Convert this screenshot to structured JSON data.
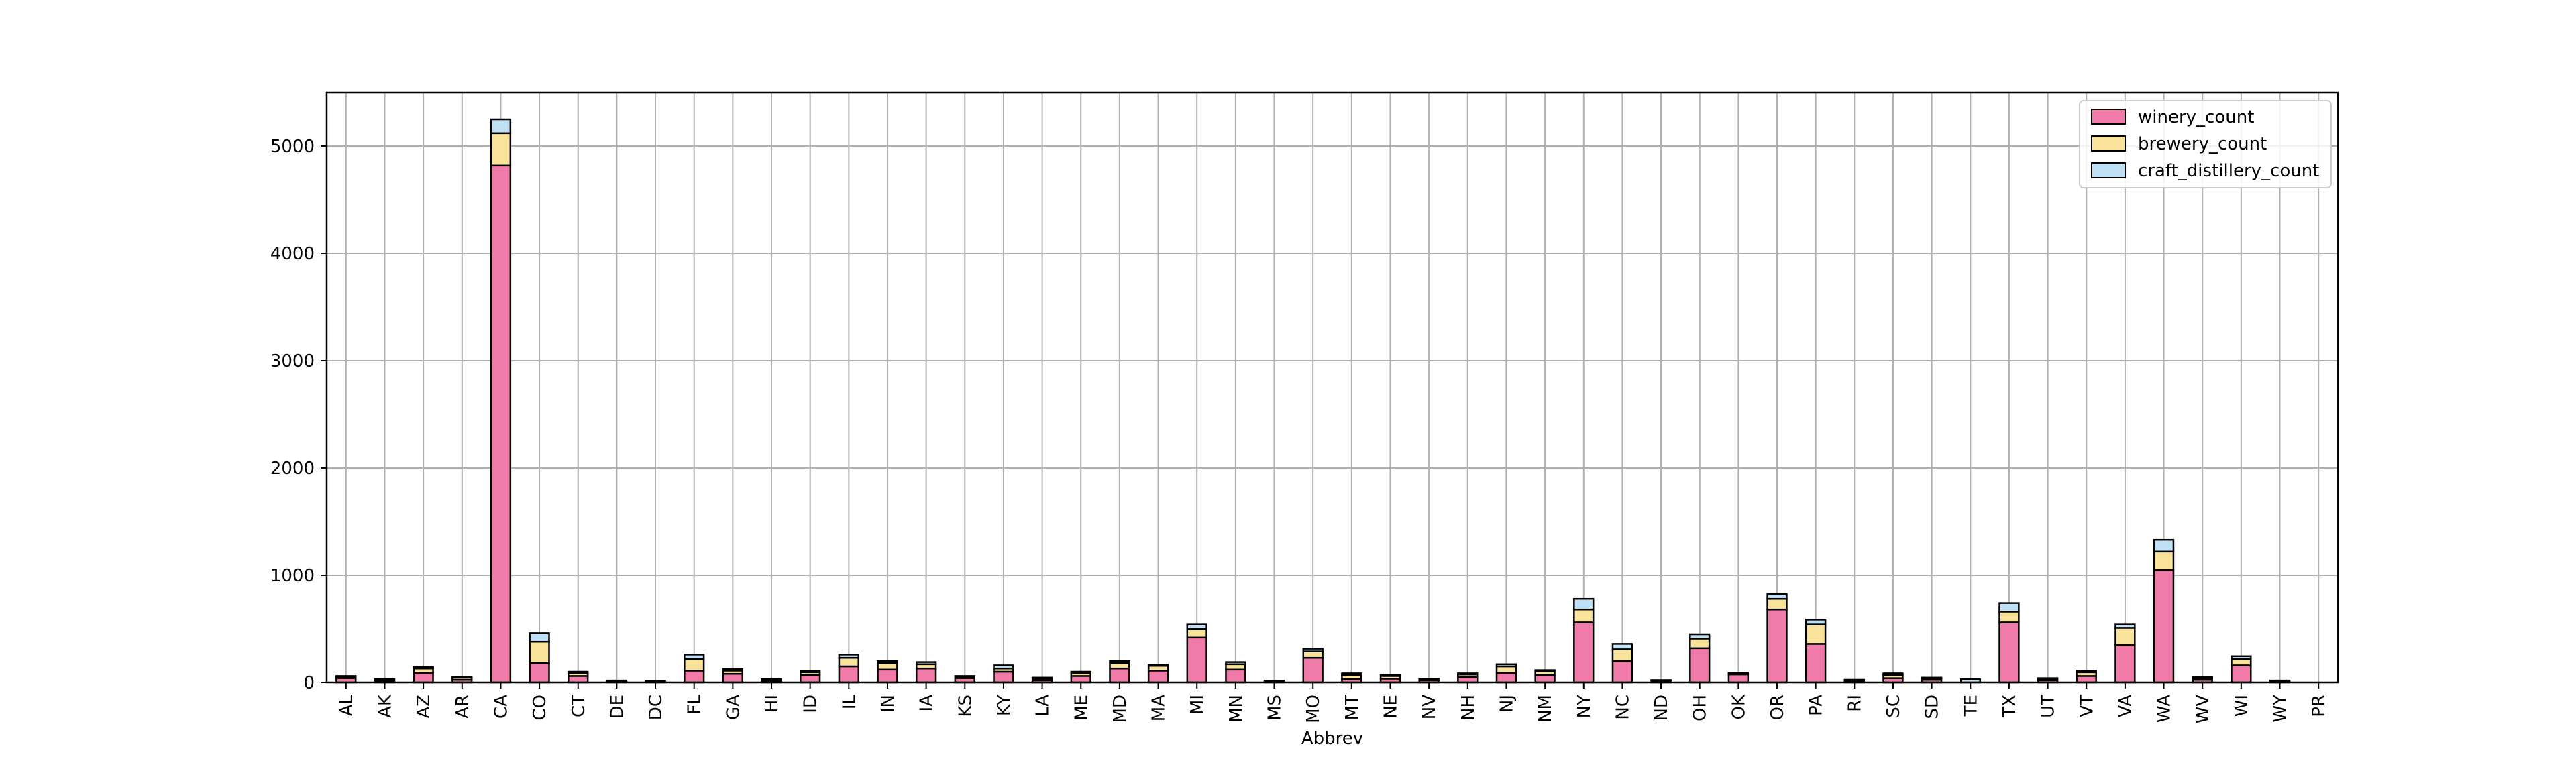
{
  "chart_data": {
    "type": "bar",
    "stacked": true,
    "title": "",
    "xlabel": "Abbrev",
    "ylabel": "",
    "ylim": [
      0,
      5500
    ],
    "yticks": [
      0,
      1000,
      2000,
      3000,
      4000,
      5000
    ],
    "grid": true,
    "legend_position": "top-right",
    "categories": [
      "AL",
      "AK",
      "AZ",
      "AR",
      "CA",
      "CO",
      "CT",
      "DE",
      "DC",
      "FL",
      "GA",
      "HI",
      "ID",
      "IL",
      "IN",
      "IA",
      "KS",
      "KY",
      "LA",
      "ME",
      "MD",
      "MA",
      "MI",
      "MN",
      "MS",
      "MO",
      "MT",
      "NE",
      "NV",
      "NH",
      "NJ",
      "NM",
      "NY",
      "NC",
      "ND",
      "OH",
      "OK",
      "OR",
      "PA",
      "RI",
      "SC",
      "SD",
      "TE",
      "TX",
      "UT",
      "VT",
      "VA",
      "WA",
      "WV",
      "WI",
      "WY",
      "PR"
    ],
    "series": [
      {
        "name": "winery_count",
        "color": "#f07aa8",
        "values": [
          40,
          15,
          90,
          25,
          4820,
          180,
          60,
          10,
          5,
          110,
          80,
          15,
          70,
          150,
          120,
          130,
          40,
          100,
          20,
          60,
          130,
          110,
          420,
          120,
          8,
          230,
          30,
          35,
          20,
          50,
          90,
          70,
          560,
          200,
          15,
          320,
          75,
          680,
          360,
          10,
          40,
          25,
          0,
          560,
          20,
          60,
          350,
          1050,
          25,
          160,
          10,
          0
        ]
      },
      {
        "name": "brewery_count",
        "color": "#f9e29a",
        "values": [
          15,
          10,
          40,
          20,
          300,
          200,
          25,
          5,
          5,
          110,
          30,
          10,
          25,
          80,
          60,
          40,
          15,
          30,
          15,
          30,
          50,
          45,
          80,
          50,
          5,
          60,
          40,
          25,
          10,
          25,
          60,
          35,
          120,
          110,
          5,
          90,
          10,
          100,
          180,
          10,
          30,
          15,
          0,
          100,
          15,
          35,
          160,
          170,
          15,
          60,
          5,
          0
        ]
      },
      {
        "name": "craft_distillery_count",
        "color": "#bfe0f5",
        "values": [
          5,
          5,
          15,
          5,
          130,
          80,
          15,
          3,
          3,
          40,
          15,
          5,
          10,
          30,
          20,
          20,
          5,
          30,
          10,
          10,
          20,
          10,
          40,
          20,
          3,
          25,
          15,
          10,
          5,
          10,
          20,
          10,
          100,
          50,
          2,
          40,
          5,
          45,
          45,
          5,
          15,
          5,
          30,
          80,
          5,
          15,
          30,
          110,
          10,
          25,
          3,
          0
        ]
      }
    ]
  }
}
